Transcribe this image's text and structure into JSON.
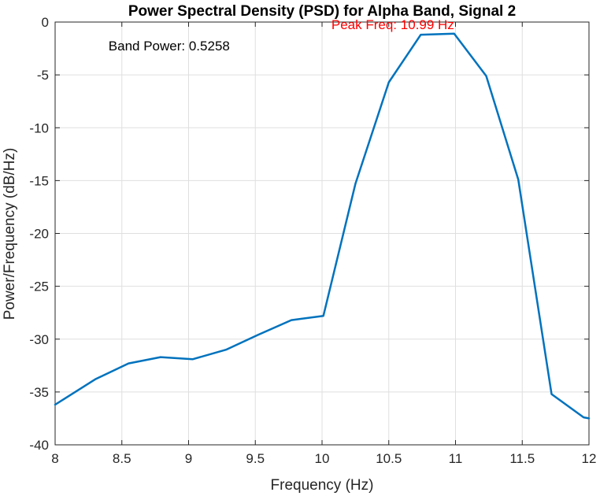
{
  "chart_data": {
    "type": "line",
    "title": "Power Spectral Density (PSD) for Alpha Band, Signal 2",
    "xlabel": "Frequency (Hz)",
    "ylabel": "Power/Frequency (dB/Hz)",
    "xlim": [
      8,
      12
    ],
    "ylim": [
      -40,
      0
    ],
    "xticks": [
      8,
      8.5,
      9,
      9.5,
      10,
      10.5,
      11,
      11.5,
      12
    ],
    "xtick_labels": [
      "8",
      "8.5",
      "9",
      "9.5",
      "10",
      "10.5",
      "11",
      "11.5",
      "12"
    ],
    "yticks": [
      0,
      -5,
      -10,
      -15,
      -20,
      -25,
      -30,
      -35,
      -40
    ],
    "ytick_labels": [
      "0",
      "-5",
      "-10",
      "-15",
      "-20",
      "-25",
      "-30",
      "-35",
      "-40"
    ],
    "grid": true,
    "line_color": "#0072BD",
    "series": [
      {
        "x": [
          8.0,
          8.3,
          8.55,
          8.79,
          9.03,
          9.28,
          9.52,
          9.77,
          10.01,
          10.25,
          10.5,
          10.74,
          10.99,
          11.23,
          11.47,
          11.72,
          11.96,
          12.0
        ],
        "y": [
          -36.2,
          -33.8,
          -32.3,
          -31.7,
          -31.9,
          -31.0,
          -29.6,
          -28.2,
          -27.8,
          -15.3,
          -5.7,
          -1.2,
          -1.1,
          -5.1,
          -14.9,
          -35.2,
          -37.4,
          -37.5
        ]
      }
    ],
    "annotations": [
      {
        "text": "Band Power: 0.5258",
        "x": 8.4,
        "y": -2,
        "color": "#000000",
        "align": "start"
      },
      {
        "text": "Peak Freq: 10.99 Hz",
        "x": 10.99,
        "y": 0,
        "color": "#FF0000",
        "align": "end"
      }
    ]
  }
}
